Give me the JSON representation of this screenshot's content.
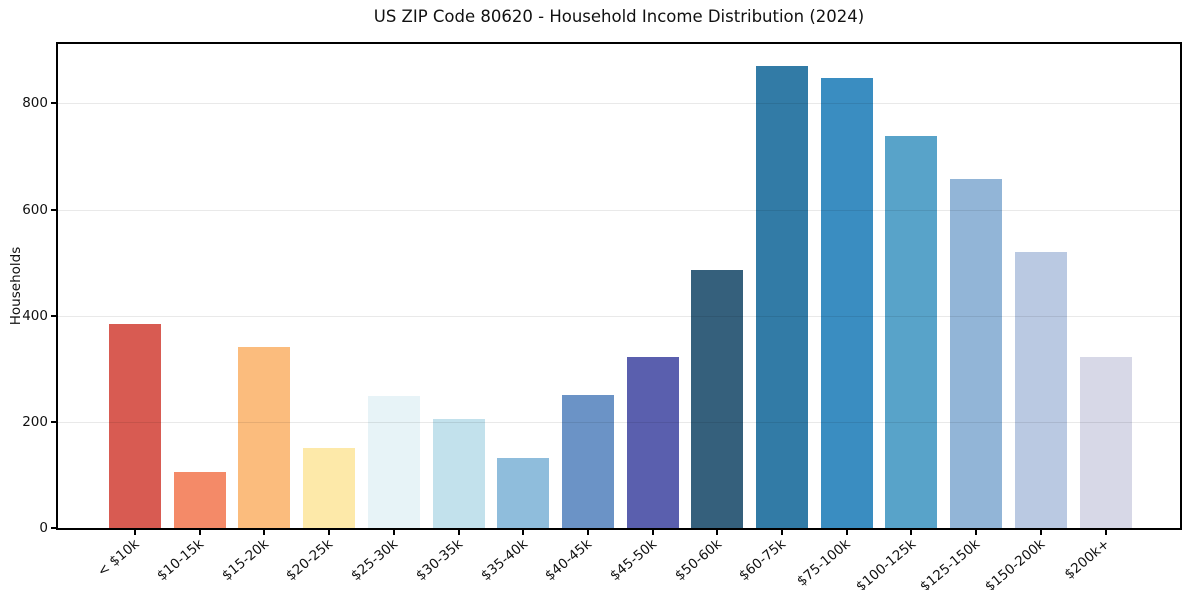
{
  "chart_data": {
    "type": "bar",
    "title": "US ZIP Code 80620 - Household Income Distribution (2024)",
    "xlabel": "",
    "ylabel": "Households",
    "categories": [
      "< $10k",
      "$10-15k",
      "$15-20k",
      "$20-25k",
      "$25-30k",
      "$30-35k",
      "$35-40k",
      "$40-45k",
      "$45-50k",
      "$50-60k",
      "$60-75k",
      "$75-100k",
      "$100-125k",
      "$125-150k",
      "$150-200k",
      "$200k+"
    ],
    "values": [
      385,
      106,
      341,
      150,
      249,
      206,
      132,
      251,
      323,
      487,
      870,
      848,
      738,
      657,
      521,
      322
    ],
    "bar_colors": [
      "#d85b52",
      "#f48a68",
      "#fbbc7d",
      "#fde9a9",
      "#e7f3f7",
      "#c2e1ec",
      "#8fbddc",
      "#6b93c6",
      "#5a5fae",
      "#35607c",
      "#327ba6",
      "#3a8dc1",
      "#58a3c9",
      "#92b5d7",
      "#bac9e2",
      "#d7d8e7"
    ],
    "yticks": [
      0,
      200,
      400,
      600,
      800
    ],
    "ylim": [
      0,
      912
    ],
    "grid": "horizontal",
    "legend": "none",
    "spine_color": "#000000",
    "gridline_color": "#e9e9e9",
    "background_color": "#ffffff"
  }
}
